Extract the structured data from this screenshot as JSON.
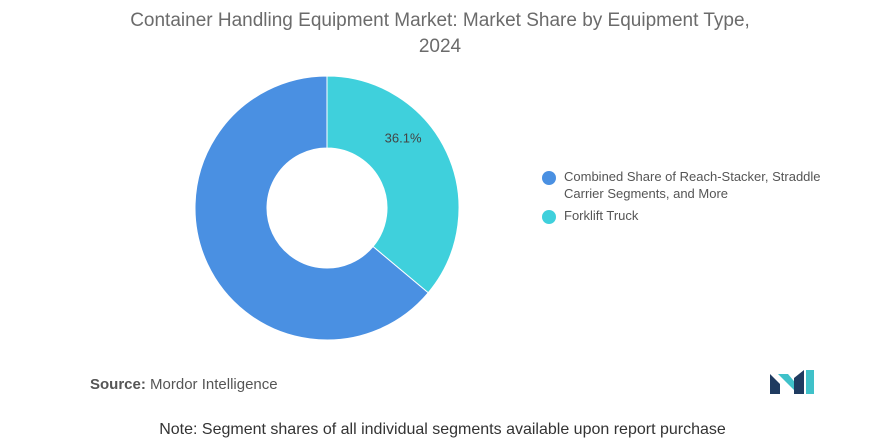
{
  "title": "Container Handling Equipment Market: Market Share by Equipment Type, 2024",
  "chart_data": {
    "type": "pie",
    "title": "Container Handling Equipment Market: Market Share by Equipment Type, 2024",
    "donut": true,
    "legend_position": "right",
    "slices": [
      {
        "label": "Combined Share of Reach-Stacker, Straddle Carrier Segments, and More",
        "value": 63.9,
        "color": "#4a90e2",
        "data_label": ""
      },
      {
        "label": "Forklift Truck",
        "value": 36.1,
        "color": "#3fd0dc",
        "data_label": "36.1%"
      }
    ]
  },
  "source": {
    "label": "Source:",
    "text": "Mordor Intelligence"
  },
  "note": "Note: Segment shares of all individual segments available upon report purchase",
  "logo": {
    "icon": "mordor-intelligence-logo-icon",
    "colors": [
      "#1f3b60",
      "#3fc1c9"
    ]
  }
}
